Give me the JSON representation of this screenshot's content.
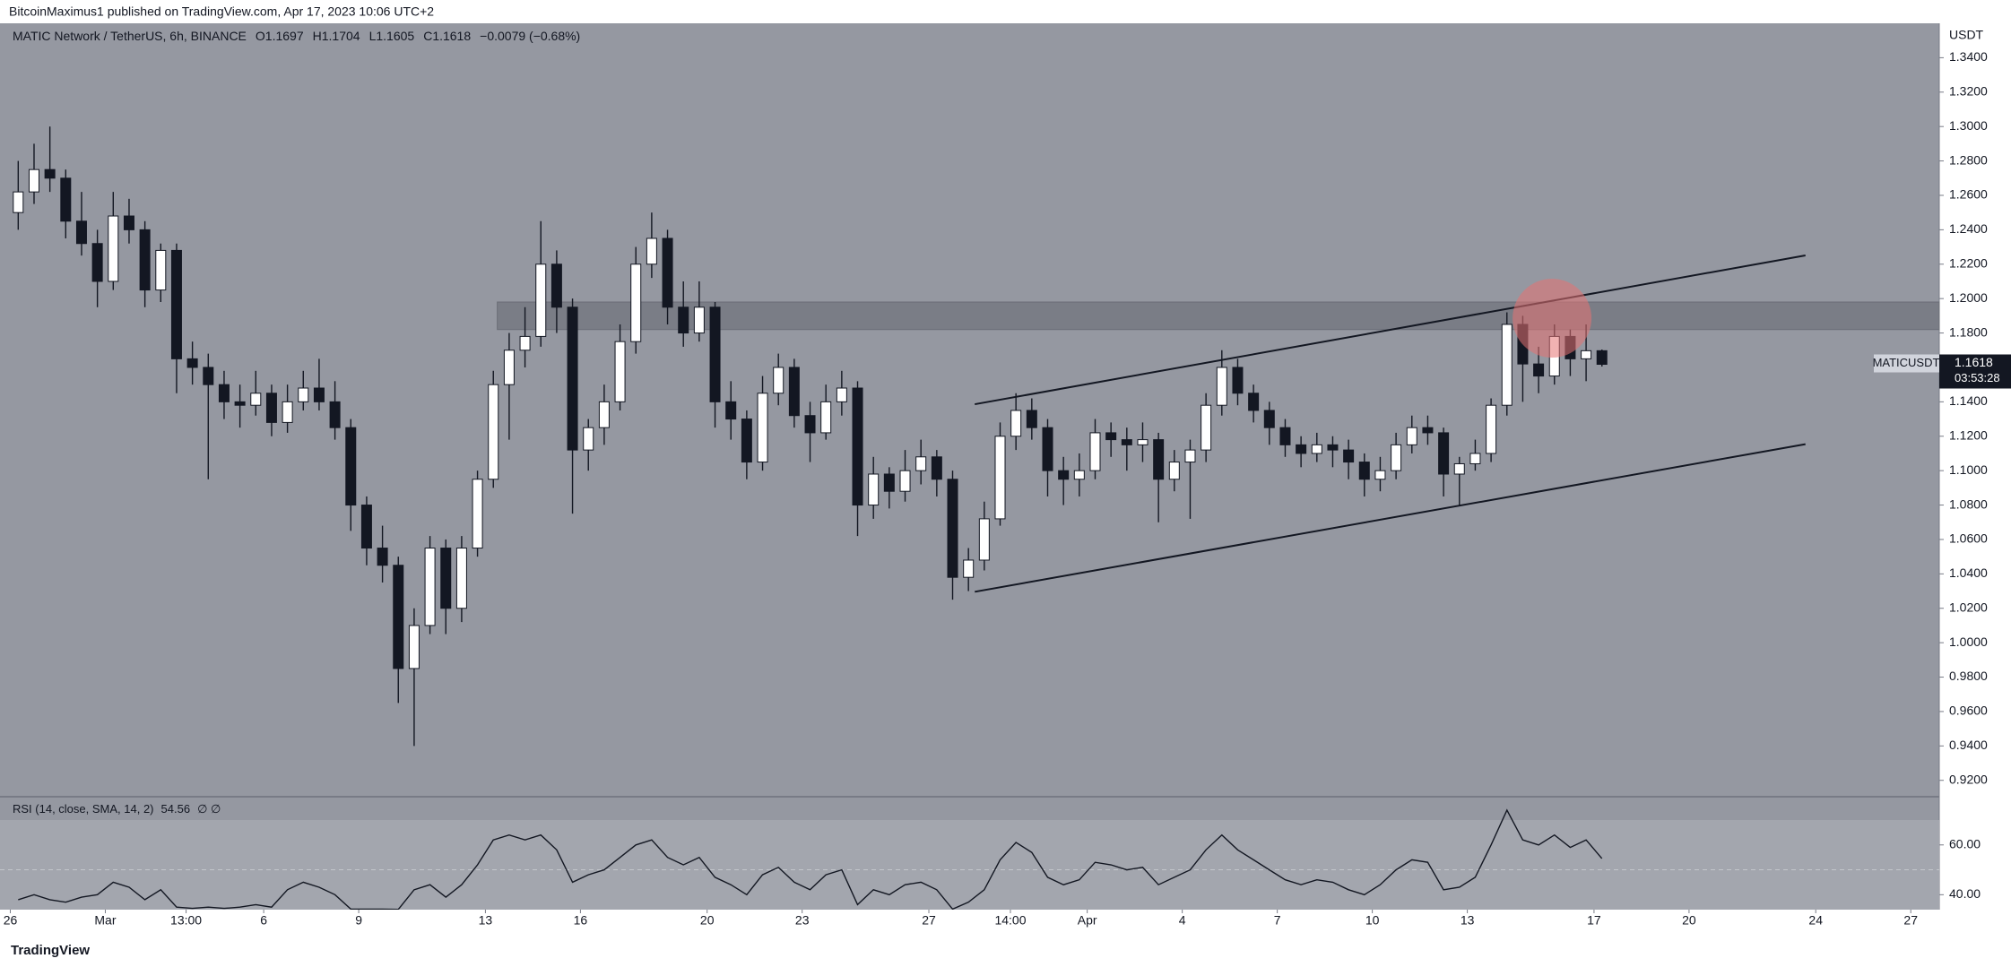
{
  "publisher": "BitcoinMaximus1 published on TradingView.com, Apr 17, 2023 10:06 UTC+2",
  "brand": "TradingView",
  "chart_data": [
    {
      "type": "candlestick",
      "title": "MATIC Network / TetherUS, 6h, BINANCE",
      "ohlc_labels": [
        "O",
        "H",
        "L",
        "C"
      ],
      "change": "−0.0079 (−0.68%)",
      "currency": "USDT",
      "symbol": "MATICUSDT",
      "countdown": "03:53:28",
      "up_color": "#ffffff",
      "down_color": "#131722",
      "x": [
        1,
        3,
        5,
        7,
        9,
        11,
        13,
        15,
        17,
        19,
        21,
        23,
        25,
        27,
        29,
        31,
        33,
        35,
        37,
        39,
        41,
        43,
        45,
        47,
        49,
        51,
        53,
        55,
        57,
        59,
        61,
        63,
        65,
        67,
        69,
        71,
        73,
        75,
        77,
        79,
        81,
        83,
        85,
        87,
        89,
        91,
        93,
        95,
        97,
        99,
        101,
        103,
        105,
        107,
        109,
        111,
        113,
        115,
        117,
        119,
        121,
        123,
        125,
        127,
        129,
        131,
        133,
        135,
        137,
        139,
        141,
        143,
        145,
        147,
        149,
        151,
        153,
        155,
        157,
        159,
        161,
        163,
        165,
        167,
        169,
        171,
        173,
        175,
        177,
        179,
        181,
        183,
        185,
        187,
        189,
        191,
        193,
        195,
        197,
        199,
        201
      ],
      "ohlc": [
        [
          1.25,
          1.28,
          1.24,
          1.262
        ],
        [
          1.262,
          1.29,
          1.255,
          1.275
        ],
        [
          1.275,
          1.3,
          1.262,
          1.27
        ],
        [
          1.27,
          1.275,
          1.235,
          1.245
        ],
        [
          1.245,
          1.262,
          1.225,
          1.232
        ],
        [
          1.232,
          1.24,
          1.195,
          1.21
        ],
        [
          1.21,
          1.262,
          1.205,
          1.248
        ],
        [
          1.248,
          1.258,
          1.232,
          1.24
        ],
        [
          1.24,
          1.245,
          1.195,
          1.205
        ],
        [
          1.205,
          1.232,
          1.198,
          1.228
        ],
        [
          1.228,
          1.232,
          1.145,
          1.165
        ],
        [
          1.165,
          1.175,
          1.15,
          1.16
        ],
        [
          1.16,
          1.168,
          1.095,
          1.15
        ],
        [
          1.15,
          1.158,
          1.13,
          1.14
        ],
        [
          1.14,
          1.15,
          1.125,
          1.138
        ],
        [
          1.138,
          1.158,
          1.132,
          1.145
        ],
        [
          1.145,
          1.15,
          1.12,
          1.128
        ],
        [
          1.128,
          1.15,
          1.122,
          1.14
        ],
        [
          1.14,
          1.158,
          1.135,
          1.148
        ],
        [
          1.148,
          1.165,
          1.135,
          1.14
        ],
        [
          1.14,
          1.152,
          1.118,
          1.125
        ],
        [
          1.125,
          1.13,
          1.065,
          1.08
        ],
        [
          1.08,
          1.085,
          1.045,
          1.055
        ],
        [
          1.055,
          1.068,
          1.035,
          1.045
        ],
        [
          1.045,
          1.05,
          0.965,
          0.985
        ],
        [
          0.985,
          1.02,
          0.94,
          1.01
        ],
        [
          1.01,
          1.062,
          1.005,
          1.055
        ],
        [
          1.055,
          1.06,
          1.005,
          1.02
        ],
        [
          1.02,
          1.062,
          1.012,
          1.055
        ],
        [
          1.055,
          1.1,
          1.05,
          1.095
        ],
        [
          1.095,
          1.158,
          1.09,
          1.15
        ],
        [
          1.15,
          1.18,
          1.118,
          1.17
        ],
        [
          1.17,
          1.195,
          1.16,
          1.178
        ],
        [
          1.178,
          1.245,
          1.172,
          1.22
        ],
        [
          1.22,
          1.228,
          1.18,
          1.195
        ],
        [
          1.195,
          1.2,
          1.075,
          1.112
        ],
        [
          1.112,
          1.13,
          1.1,
          1.125
        ],
        [
          1.125,
          1.15,
          1.115,
          1.14
        ],
        [
          1.14,
          1.185,
          1.135,
          1.175
        ],
        [
          1.175,
          1.23,
          1.168,
          1.22
        ],
        [
          1.22,
          1.25,
          1.212,
          1.235
        ],
        [
          1.235,
          1.24,
          1.185,
          1.195
        ],
        [
          1.195,
          1.21,
          1.172,
          1.18
        ],
        [
          1.18,
          1.21,
          1.175,
          1.195
        ],
        [
          1.195,
          1.198,
          1.125,
          1.14
        ],
        [
          1.14,
          1.152,
          1.118,
          1.13
        ],
        [
          1.13,
          1.135,
          1.095,
          1.105
        ],
        [
          1.105,
          1.155,
          1.1,
          1.145
        ],
        [
          1.145,
          1.168,
          1.138,
          1.16
        ],
        [
          1.16,
          1.165,
          1.125,
          1.132
        ],
        [
          1.132,
          1.14,
          1.105,
          1.122
        ],
        [
          1.122,
          1.15,
          1.118,
          1.14
        ],
        [
          1.14,
          1.158,
          1.132,
          1.148
        ],
        [
          1.148,
          1.152,
          1.062,
          1.08
        ],
        [
          1.08,
          1.108,
          1.072,
          1.098
        ],
        [
          1.098,
          1.102,
          1.078,
          1.088
        ],
        [
          1.088,
          1.112,
          1.082,
          1.1
        ],
        [
          1.1,
          1.118,
          1.092,
          1.108
        ],
        [
          1.108,
          1.112,
          1.085,
          1.095
        ],
        [
          1.095,
          1.1,
          1.025,
          1.038
        ],
        [
          1.038,
          1.055,
          1.03,
          1.048
        ],
        [
          1.048,
          1.082,
          1.042,
          1.072
        ],
        [
          1.072,
          1.128,
          1.068,
          1.12
        ],
        [
          1.12,
          1.145,
          1.112,
          1.135
        ],
        [
          1.135,
          1.142,
          1.118,
          1.125
        ],
        [
          1.125,
          1.13,
          1.085,
          1.1
        ],
        [
          1.1,
          1.108,
          1.08,
          1.095
        ],
        [
          1.095,
          1.11,
          1.085,
          1.1
        ],
        [
          1.1,
          1.13,
          1.095,
          1.122
        ],
        [
          1.122,
          1.128,
          1.108,
          1.118
        ],
        [
          1.118,
          1.125,
          1.1,
          1.115
        ],
        [
          1.115,
          1.128,
          1.105,
          1.118
        ],
        [
          1.118,
          1.122,
          1.07,
          1.095
        ],
        [
          1.095,
          1.112,
          1.088,
          1.105
        ],
        [
          1.105,
          1.118,
          1.072,
          1.112
        ],
        [
          1.112,
          1.145,
          1.105,
          1.138
        ],
        [
          1.138,
          1.17,
          1.132,
          1.16
        ],
        [
          1.16,
          1.165,
          1.138,
          1.145
        ],
        [
          1.145,
          1.15,
          1.128,
          1.135
        ],
        [
          1.135,
          1.14,
          1.115,
          1.125
        ],
        [
          1.125,
          1.13,
          1.108,
          1.115
        ],
        [
          1.115,
          1.12,
          1.102,
          1.11
        ],
        [
          1.11,
          1.122,
          1.105,
          1.115
        ],
        [
          1.115,
          1.12,
          1.102,
          1.112
        ],
        [
          1.112,
          1.118,
          1.095,
          1.105
        ],
        [
          1.105,
          1.11,
          1.085,
          1.095
        ],
        [
          1.095,
          1.108,
          1.088,
          1.1
        ],
        [
          1.1,
          1.122,
          1.095,
          1.115
        ],
        [
          1.115,
          1.132,
          1.11,
          1.125
        ],
        [
          1.125,
          1.132,
          1.115,
          1.122
        ],
        [
          1.122,
          1.125,
          1.085,
          1.098
        ],
        [
          1.098,
          1.108,
          1.08,
          1.104
        ],
        [
          1.104,
          1.118,
          1.1,
          1.11
        ],
        [
          1.11,
          1.142,
          1.105,
          1.138
        ],
        [
          1.138,
          1.192,
          1.132,
          1.185
        ],
        [
          1.185,
          1.19,
          1.14,
          1.162
        ],
        [
          1.162,
          1.172,
          1.145,
          1.155
        ],
        [
          1.155,
          1.185,
          1.15,
          1.178
        ],
        [
          1.178,
          1.182,
          1.155,
          1.165
        ],
        [
          1.165,
          1.185,
          1.152,
          1.1697
        ],
        [
          1.1697,
          1.1704,
          1.1605,
          1.1618
        ]
      ],
      "xlim": [
        -1.3,
        243.6
      ],
      "xticks": [
        {
          "value": 0,
          "label": "26"
        },
        {
          "value": 12,
          "label": "Mar"
        },
        {
          "value": 22.2,
          "label": "13:00"
        },
        {
          "value": 32,
          "label": "6"
        },
        {
          "value": 44,
          "label": "9"
        },
        {
          "value": 60,
          "label": "13"
        },
        {
          "value": 72,
          "label": "16"
        },
        {
          "value": 88,
          "label": "20"
        },
        {
          "value": 100,
          "label": "23"
        },
        {
          "value": 116,
          "label": "27"
        },
        {
          "value": 126.3,
          "label": "14:00"
        },
        {
          "value": 136,
          "label": "Apr"
        },
        {
          "value": 148,
          "label": "4"
        },
        {
          "value": 160,
          "label": "7"
        },
        {
          "value": 172,
          "label": "10"
        },
        {
          "value": 184,
          "label": "13"
        },
        {
          "value": 200,
          "label": "17"
        },
        {
          "value": 212,
          "label": "20"
        },
        {
          "value": 228,
          "label": "24"
        },
        {
          "value": 240,
          "label": "27"
        }
      ],
      "ylim": [
        0.911,
        1.36
      ],
      "yticks": [
        {
          "value": 0.92,
          "label": "0.9200"
        },
        {
          "value": 0.94,
          "label": "0.9400"
        },
        {
          "value": 0.96,
          "label": "0.9600"
        },
        {
          "value": 0.98,
          "label": "0.9800"
        },
        {
          "value": 1,
          "label": "1.0000"
        },
        {
          "value": 1.02,
          "label": "1.0200"
        },
        {
          "value": 1.04,
          "label": "1.0400"
        },
        {
          "value": 1.06,
          "label": "1.0600"
        },
        {
          "value": 1.08,
          "label": "1.0800"
        },
        {
          "value": 1.1,
          "label": "1.1000"
        },
        {
          "value": 1.12,
          "label": "1.1200"
        },
        {
          "value": 1.14,
          "label": "1.1400"
        },
        {
          "value": 1.16,
          "label": "1.1600"
        },
        {
          "value": 1.18,
          "label": "1.1800"
        },
        {
          "value": 1.2,
          "label": "1.2000"
        },
        {
          "value": 1.22,
          "label": "1.2200"
        },
        {
          "value": 1.24,
          "label": "1.2400"
        },
        {
          "value": 1.26,
          "label": "1.2600"
        },
        {
          "value": 1.28,
          "label": "1.2800"
        },
        {
          "value": 1.3,
          "label": "1.3000"
        },
        {
          "value": 1.32,
          "label": "1.3200"
        },
        {
          "value": 1.34,
          "label": "1.3400"
        }
      ],
      "zone": {
        "x": [
          61.5,
          243.6
        ],
        "y": [
          1.182,
          1.198
        ]
      },
      "channel": [
        {
          "x": [
            121.8,
            226.7
          ],
          "y": [
            1.1386,
            1.2251
          ]
        },
        {
          "x": [
            121.8,
            226.7
          ],
          "y": [
            1.0296,
            1.1154
          ]
        }
      ],
      "circle": {
        "x": 194.7,
        "y": 1.1886,
        "color": "#e57373"
      }
    },
    {
      "type": "line",
      "title": "RSI (14, close, SMA, 14, 2)",
      "nulls": "∅ ∅",
      "color": "#131722",
      "values": [
        38,
        40,
        38,
        37,
        39,
        40,
        45,
        43,
        38,
        42,
        35,
        34.5,
        35,
        34.5,
        35,
        36,
        35,
        42,
        45,
        43,
        40,
        34.2,
        34.2,
        34.2,
        34.1,
        42,
        44,
        39,
        44,
        52,
        62,
        64,
        62,
        64,
        58,
        45,
        48,
        50,
        55,
        60,
        62,
        55,
        52,
        55,
        47,
        44,
        40,
        48,
        51,
        45,
        42,
        48,
        50,
        36,
        42,
        40,
        44,
        45,
        42,
        34.2,
        37,
        42,
        54,
        61,
        57,
        47,
        44,
        46,
        53,
        52,
        50,
        51,
        44,
        47,
        50,
        58,
        64,
        58,
        54,
        50,
        46,
        44,
        46,
        45,
        42,
        40,
        44,
        50,
        54,
        53,
        42,
        43,
        47,
        60,
        74,
        62,
        60,
        64,
        59,
        62,
        54.56
      ],
      "ylim": [
        34,
        79
      ],
      "yticks": [
        {
          "value": 40,
          "label": "40.00"
        },
        {
          "value": 60,
          "label": "60.00"
        }
      ],
      "band": [
        30,
        70
      ],
      "midline": 50
    }
  ]
}
